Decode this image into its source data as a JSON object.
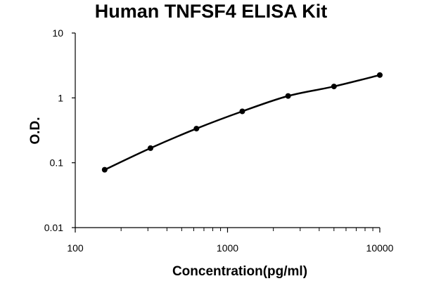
{
  "chart_data": {
    "type": "scatter",
    "title": "Human TNFSF4 ELISA Kit",
    "xlabel": "Concentration(pg/ml)",
    "ylabel": "O.D.",
    "xscale": "log",
    "yscale": "log",
    "xlim": [
      100,
      10000
    ],
    "ylim": [
      0.01,
      10
    ],
    "x_ticks": [
      "100",
      "1000",
      "10000"
    ],
    "y_ticks": [
      "0.01",
      "0.1",
      "1",
      "10"
    ],
    "grid": false,
    "legend": "none",
    "series": [
      {
        "x": [
          156,
          312,
          625,
          1250,
          2500,
          5000,
          10000
        ],
        "y": [
          0.078,
          0.168,
          0.336,
          0.62,
          1.07,
          1.5,
          2.25
        ],
        "fit_curve": true,
        "color": "#000000"
      }
    ]
  }
}
